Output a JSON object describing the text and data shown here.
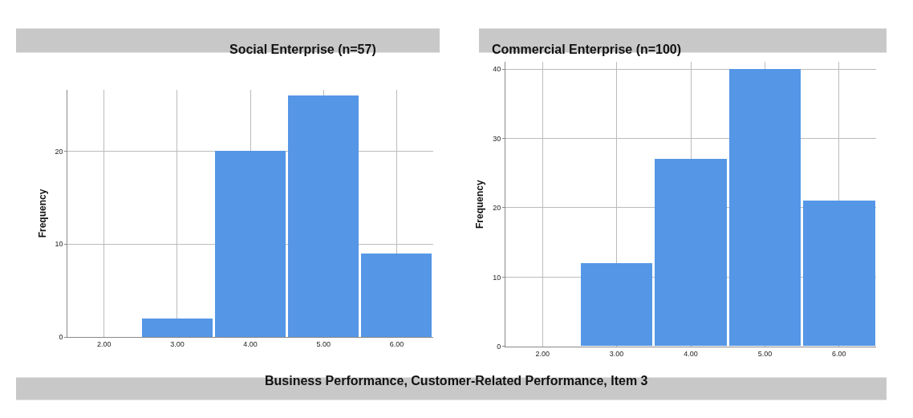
{
  "chart_data": [
    {
      "type": "bar",
      "title": "Social Enterprise (n=57)",
      "ylabel": "Frequency",
      "xlabel": "Business Performance, Customer-Related Performance, Item 3",
      "categories": [
        "2.00",
        "3.00",
        "4.00",
        "5.00",
        "6.00"
      ],
      "values": [
        0,
        2,
        20,
        26,
        9
      ],
      "color": "#5596e6",
      "ylim": [
        0,
        26.6
      ],
      "yticks": [
        0,
        10,
        20
      ],
      "grid": true
    },
    {
      "type": "bar",
      "title": "Commercial Enterprise (n=100)",
      "ylabel": "Frequency",
      "categories": [
        "2.00",
        "3.00",
        "4.00",
        "5.00",
        "6.00"
      ],
      "values": [
        0,
        12,
        27,
        40,
        21
      ],
      "color": "#5596e6",
      "ylim": [
        0,
        41
      ],
      "yticks": [
        0,
        10,
        20,
        30,
        40
      ],
      "grid": true
    }
  ]
}
